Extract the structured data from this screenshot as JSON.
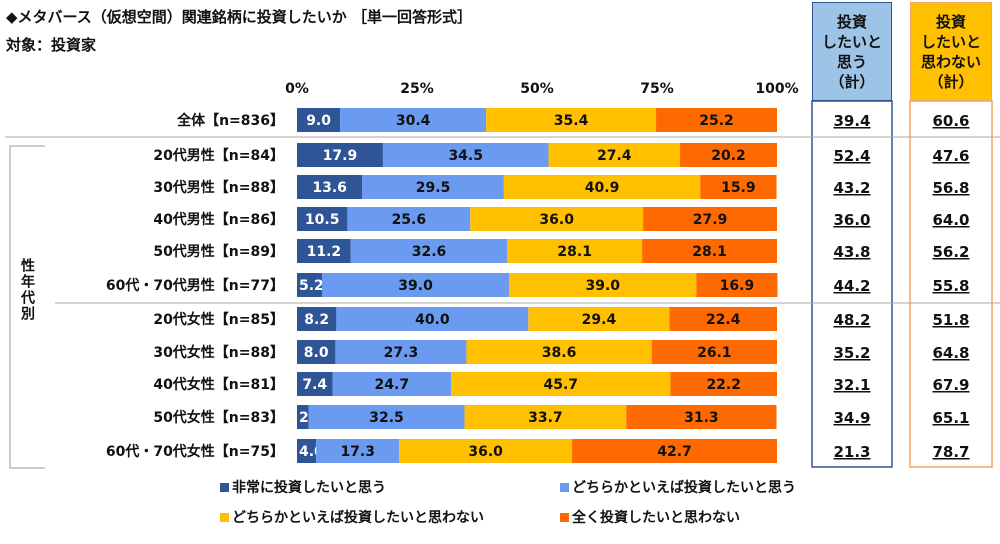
{
  "title": "◆メタバース（仮想空間）関連銘柄に投資したいか ［単一回答形式］",
  "subtitle": "対象：投資家",
  "group_label": "性年代別",
  "headers": {
    "want": "投資\nしたいと\n思う\n（計）",
    "not_want": "投資\nしたいと\n思わない\n（計）"
  },
  "colors": {
    "series": [
      "#2F5597",
      "#6A9BF0",
      "#FFC000",
      "#FF6A00"
    ],
    "want_box": "#9DC3E6",
    "want_border": "#2F5597",
    "not_box": "#FFC000",
    "not_border": "#F4A460"
  },
  "chart_data": {
    "type": "bar",
    "orientation": "horizontal",
    "stacked": true,
    "xlim": [
      0,
      100
    ],
    "tick_labels": [
      "0%",
      "25%",
      "50%",
      "75%",
      "100%"
    ],
    "categories": [
      "全体【n=836】",
      "20代男性【n=84】",
      "30代男性【n=88】",
      "40代男性【n=86】",
      "50代男性【n=89】",
      "60代・70代男性【n=77】",
      "20代女性【n=85】",
      "30代女性【n=88】",
      "40代女性【n=81】",
      "50代女性【n=83】",
      "60代・70代女性【n=75】"
    ],
    "series": [
      {
        "name": "非常に投資したいと思う",
        "values": [
          9.0,
          17.9,
          13.6,
          10.5,
          11.2,
          5.2,
          8.2,
          8.0,
          7.4,
          2.4,
          4.0
        ]
      },
      {
        "name": "どちらかといえば投資したいと思う",
        "values": [
          30.4,
          34.5,
          29.5,
          25.6,
          32.6,
          39.0,
          40.0,
          27.3,
          24.7,
          32.5,
          17.3
        ]
      },
      {
        "name": "どちらかといえば投資したいと思わない",
        "values": [
          35.4,
          27.4,
          40.9,
          36.0,
          28.1,
          39.0,
          29.4,
          38.6,
          45.7,
          33.7,
          36.0
        ]
      },
      {
        "name": "全く投資したいと思わない",
        "values": [
          25.2,
          20.2,
          15.9,
          27.9,
          28.1,
          16.9,
          22.4,
          26.1,
          22.2,
          31.3,
          42.7
        ]
      }
    ],
    "want_total": [
      "39.4",
      "52.4",
      "43.2",
      "36.0",
      "43.8",
      "44.2",
      "48.2",
      "35.2",
      "32.1",
      "34.9",
      "21.3"
    ],
    "not_want_total": [
      "60.6",
      "47.6",
      "56.8",
      "64.0",
      "56.2",
      "55.8",
      "51.8",
      "64.8",
      "67.9",
      "65.1",
      "78.7"
    ],
    "legend": "bottom"
  }
}
